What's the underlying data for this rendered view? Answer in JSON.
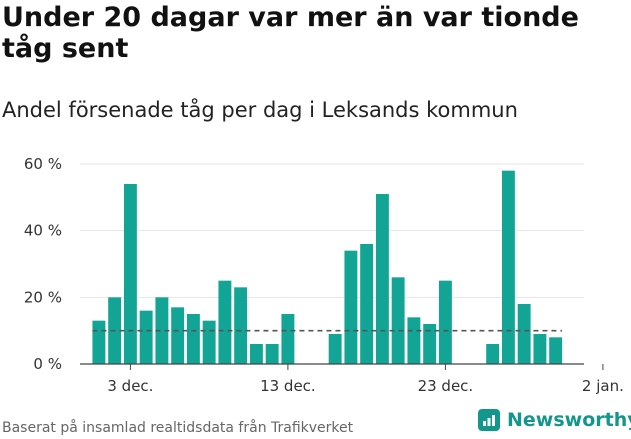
{
  "title": "Under 20 dagar var mer än var tionde tåg sent",
  "subtitle": "Andel försenade tåg per dag i Leksands kommun",
  "footer": "Baserat på insamlad realtidsdata från Trafikverket",
  "brand": {
    "name": "Newsworthy",
    "icon": "newsworthy-logo-icon",
    "color": "#13978c"
  },
  "chart_data": {
    "type": "bar",
    "title": "Under 20 dagar var mer än var tionde tåg sent",
    "subtitle": "Andel försenade tåg per dag i Leksands kommun",
    "bar_color": "#12a596",
    "reference_line": {
      "value": 10,
      "style": "dashed",
      "color": "#555555"
    },
    "ylim": [
      0,
      60
    ],
    "yticks": [
      0,
      20,
      40,
      60
    ],
    "ytick_labels": [
      "0 %",
      "20 %",
      "40 %",
      "60 %"
    ],
    "xlim": [
      -1.2,
      30.8
    ],
    "xticks": [
      2,
      12,
      22,
      32
    ],
    "xtick_labels": [
      "3 dec.",
      "13 dec.",
      "23 dec.",
      "2 jan."
    ],
    "grid": "horizontal",
    "x": [
      0,
      1,
      2,
      3,
      4,
      5,
      6,
      7,
      8,
      9,
      10,
      11,
      12,
      13,
      14,
      15,
      16,
      17,
      18,
      19,
      20,
      21,
      22,
      23,
      24,
      25,
      26,
      27,
      28,
      29
    ],
    "categories": [
      "1 dec.",
      "2 dec.",
      "3 dec.",
      "4 dec.",
      "5 dec.",
      "6 dec.",
      "7 dec.",
      "8 dec.",
      "9 dec.",
      "10 dec.",
      "11 dec.",
      "12 dec.",
      "13 dec.",
      "14 dec.",
      "15 dec.",
      "16 dec.",
      "17 dec.",
      "18 dec.",
      "19 dec.",
      "20 dec.",
      "21 dec.",
      "22 dec.",
      "23 dec.",
      "24 dec.",
      "25 dec.",
      "26 dec.",
      "27 dec.",
      "28 dec.",
      "29 dec.",
      "30 dec."
    ],
    "values": [
      13,
      20,
      54,
      16,
      20,
      17,
      15,
      13,
      25,
      23,
      6,
      6,
      15,
      null,
      null,
      9,
      34,
      36,
      51,
      26,
      14,
      12,
      25,
      null,
      null,
      6,
      58,
      18,
      9,
      8
    ]
  }
}
